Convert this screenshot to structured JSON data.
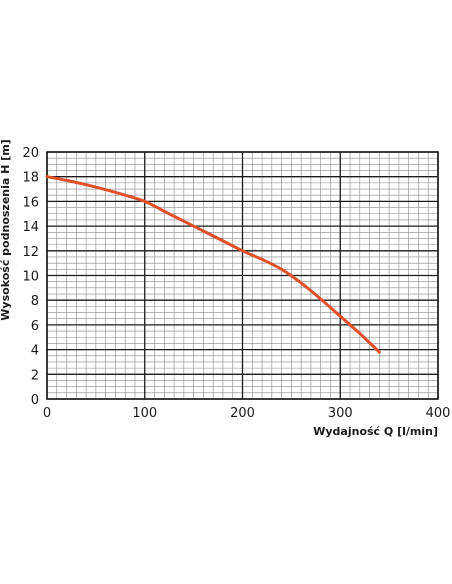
{
  "chart_data": {
    "type": "line",
    "xlabel": "Wydajność Q [l/min]",
    "ylabel": "Wysokość podnoszenia H [m]",
    "xlim": [
      0,
      400
    ],
    "ylim": [
      0,
      20
    ],
    "x_ticks": [
      0,
      100,
      200,
      300,
      400
    ],
    "y_ticks": [
      0,
      2,
      4,
      6,
      8,
      10,
      12,
      14,
      16,
      18,
      20
    ],
    "x_tick_labels": [
      "0",
      "100",
      "200",
      "300",
      "400"
    ],
    "y_tick_labels": [
      "0",
      "2",
      "4",
      "6",
      "8",
      "10",
      "12",
      "14",
      "16",
      "18",
      "20"
    ],
    "grid": true,
    "series": [
      {
        "color": "#e0502a",
        "x": [
          0,
          20,
          40,
          60,
          80,
          100,
          120,
          140,
          160,
          180,
          200,
          220,
          240,
          260,
          280,
          300,
          320,
          340
        ],
        "y": [
          18.0,
          17.7,
          17.35,
          16.95,
          16.5,
          16.0,
          15.2,
          14.4,
          13.6,
          12.8,
          12.0,
          11.3,
          10.5,
          9.4,
          8.1,
          6.7,
          5.3,
          3.8
        ]
      }
    ]
  }
}
